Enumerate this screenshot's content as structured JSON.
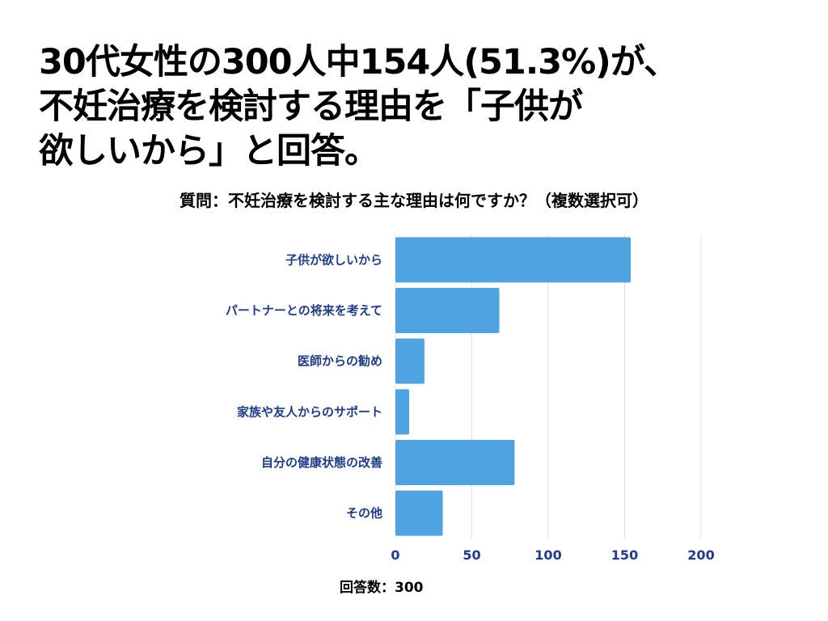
{
  "headline": {
    "lines": [
      "30代女性の300人中154人(51.3%)が、",
      "不妊治療を検討する理由を「子供が",
      "欲しいから」と回答。"
    ]
  },
  "question": "質問：不妊治療を検討する主な理由は何ですか？（複数選択可）",
  "footer_note": "回答数：300",
  "colors": {
    "bar": "#4fa3e0",
    "label": "#1f3c88",
    "grid": "#e0e0e0"
  },
  "chart_data": {
    "type": "bar",
    "orientation": "horizontal",
    "categories": [
      "子供が欲しいから",
      "パートナーとの将来を考えて",
      "医師からの勧め",
      "家族や友人からのサポート",
      "自分の健康状態の改善",
      "その他"
    ],
    "values": [
      154,
      68,
      19,
      9,
      78,
      31
    ],
    "xlim": [
      0,
      200
    ],
    "xticks": [
      0,
      50,
      100,
      150,
      200
    ],
    "grid": true,
    "legend": false
  }
}
